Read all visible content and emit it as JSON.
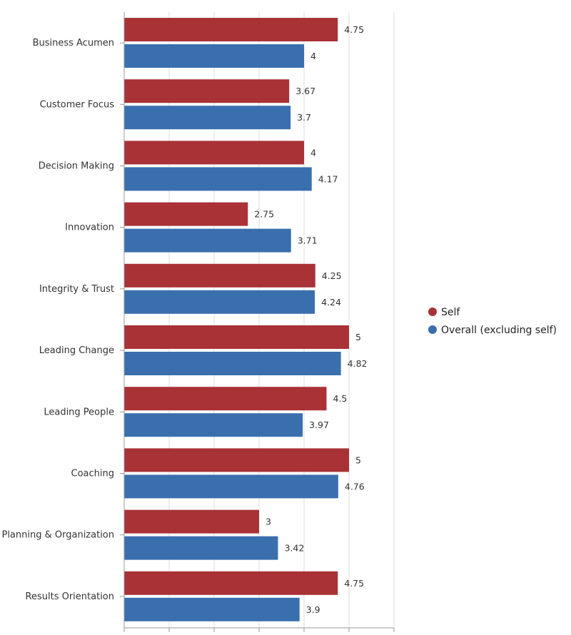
{
  "chart_data": {
    "type": "bar",
    "orientation": "horizontal",
    "categories": [
      "Business Acumen",
      "Customer Focus",
      "Decision Making",
      "Innovation",
      "Integrity & Trust",
      "Leading Change",
      "Leading People",
      "Coaching",
      "Planning & Organization",
      "Results Orientation"
    ],
    "series": [
      {
        "name": "Self",
        "color": "#a83236",
        "values": [
          4.75,
          3.67,
          4,
          2.75,
          4.25,
          5,
          4.5,
          5,
          3,
          4.75
        ],
        "labels": [
          "4.75",
          "3.67",
          "4",
          "2.75",
          "4.25",
          "5",
          "4.5",
          "5",
          "3",
          "4.75"
        ]
      },
      {
        "name": "Overall (excluding self)",
        "color": "#3a6fae",
        "values": [
          4,
          3.7,
          4.17,
          3.71,
          4.24,
          4.82,
          3.97,
          4.76,
          3.42,
          3.9
        ],
        "labels": [
          "4",
          "3.7",
          "4.17",
          "3.71",
          "4.24",
          "4.82",
          "3.97",
          "4.76",
          "3.42",
          "3.9"
        ]
      }
    ],
    "xlim": [
      0,
      6
    ],
    "grid": true,
    "legend_position": "right",
    "title": "",
    "xlabel": "",
    "ylabel": ""
  }
}
